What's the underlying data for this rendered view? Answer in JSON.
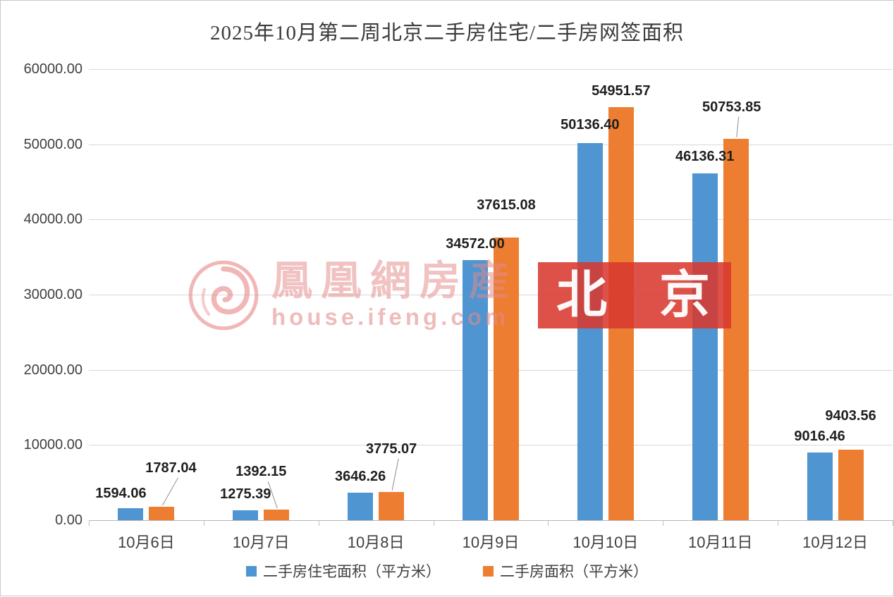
{
  "chart_data": {
    "type": "bar",
    "title": "2025年10月第二周北京二手房住宅/二手房网签面积",
    "categories": [
      "10月6日",
      "10月7日",
      "10月8日",
      "10月9日",
      "10月10日",
      "10月11日",
      "10月12日"
    ],
    "series": [
      {
        "name": "二手房住宅面积（平方米）",
        "color": "#4e95d2",
        "values": [
          1594.06,
          1275.39,
          3646.26,
          34572.0,
          50136.4,
          46136.31,
          9016.46
        ]
      },
      {
        "name": "二手房面积（平方米）",
        "color": "#ed7d31",
        "values": [
          1787.04,
          1392.15,
          3775.07,
          37615.08,
          54951.57,
          50753.85,
          9403.56
        ]
      }
    ],
    "ylim": [
      0,
      60000
    ],
    "ytick_step": 10000,
    "ytick_decimals": 2,
    "grid": true,
    "legend_position": "bottom"
  },
  "watermark": {
    "brand": "鳳凰網房産",
    "url": "house.ifeng.com",
    "city": "北 京"
  }
}
